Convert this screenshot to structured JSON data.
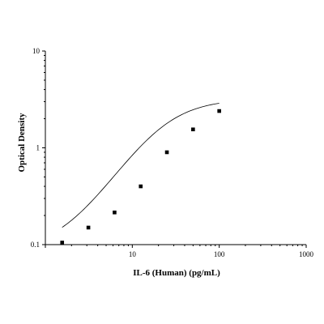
{
  "chart_data": {
    "type": "scatter",
    "xlabel": "IL-6 (Human) (pg/mL)",
    "ylabel": "Optical Density",
    "x_scale": "log",
    "y_scale": "log",
    "xlim": [
      1,
      1000
    ],
    "ylim": [
      0.1,
      10
    ],
    "x_ticks": [
      "10",
      "100",
      "1000"
    ],
    "y_ticks": [
      "0.1",
      "1",
      "10"
    ],
    "grid": false,
    "legend": "none",
    "series": [
      {
        "marker": "square",
        "x": [
          1.56,
          3.125,
          6.25,
          12.5,
          25,
          50,
          100
        ],
        "y": [
          0.105,
          0.15,
          0.215,
          0.4,
          0.9,
          1.55,
          2.4
        ]
      }
    ],
    "fit_curve": {
      "type": "4PL",
      "bottom": 0.085,
      "top": 3.2,
      "ec50": 22,
      "hill": 1.45
    }
  },
  "colors": {
    "axis": "#000000",
    "marker": "#000000",
    "curve": "#000000"
  }
}
